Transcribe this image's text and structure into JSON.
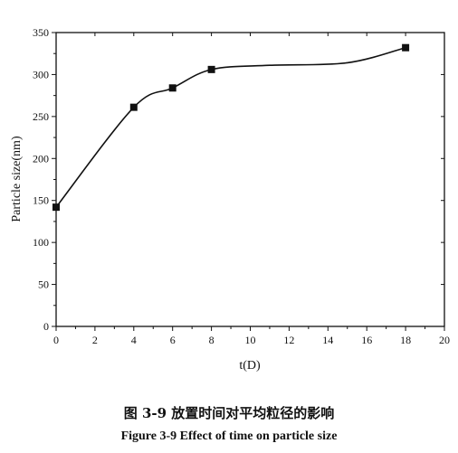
{
  "chart_data": {
    "type": "scatter",
    "title": "",
    "xlabel": "t(D)",
    "ylabel": "Particle size(nm)",
    "xlim": [
      0,
      20
    ],
    "ylim": [
      0,
      350
    ],
    "xticks": [
      0,
      2,
      4,
      6,
      8,
      10,
      12,
      14,
      16,
      18,
      20
    ],
    "yticks": [
      0,
      50,
      100,
      150,
      200,
      250,
      300,
      350
    ],
    "series": [
      {
        "marker": "square",
        "color": "#111111",
        "x": [
          0,
          4,
          6,
          8,
          18
        ],
        "y": [
          142,
          261,
          284,
          306,
          332
        ]
      }
    ],
    "fit_curve": true,
    "grid": false
  },
  "caption": {
    "chinese": "图 3-9 放置时间对平均粒径的影响",
    "english": "Figure 3-9 Effect of time on particle size"
  }
}
